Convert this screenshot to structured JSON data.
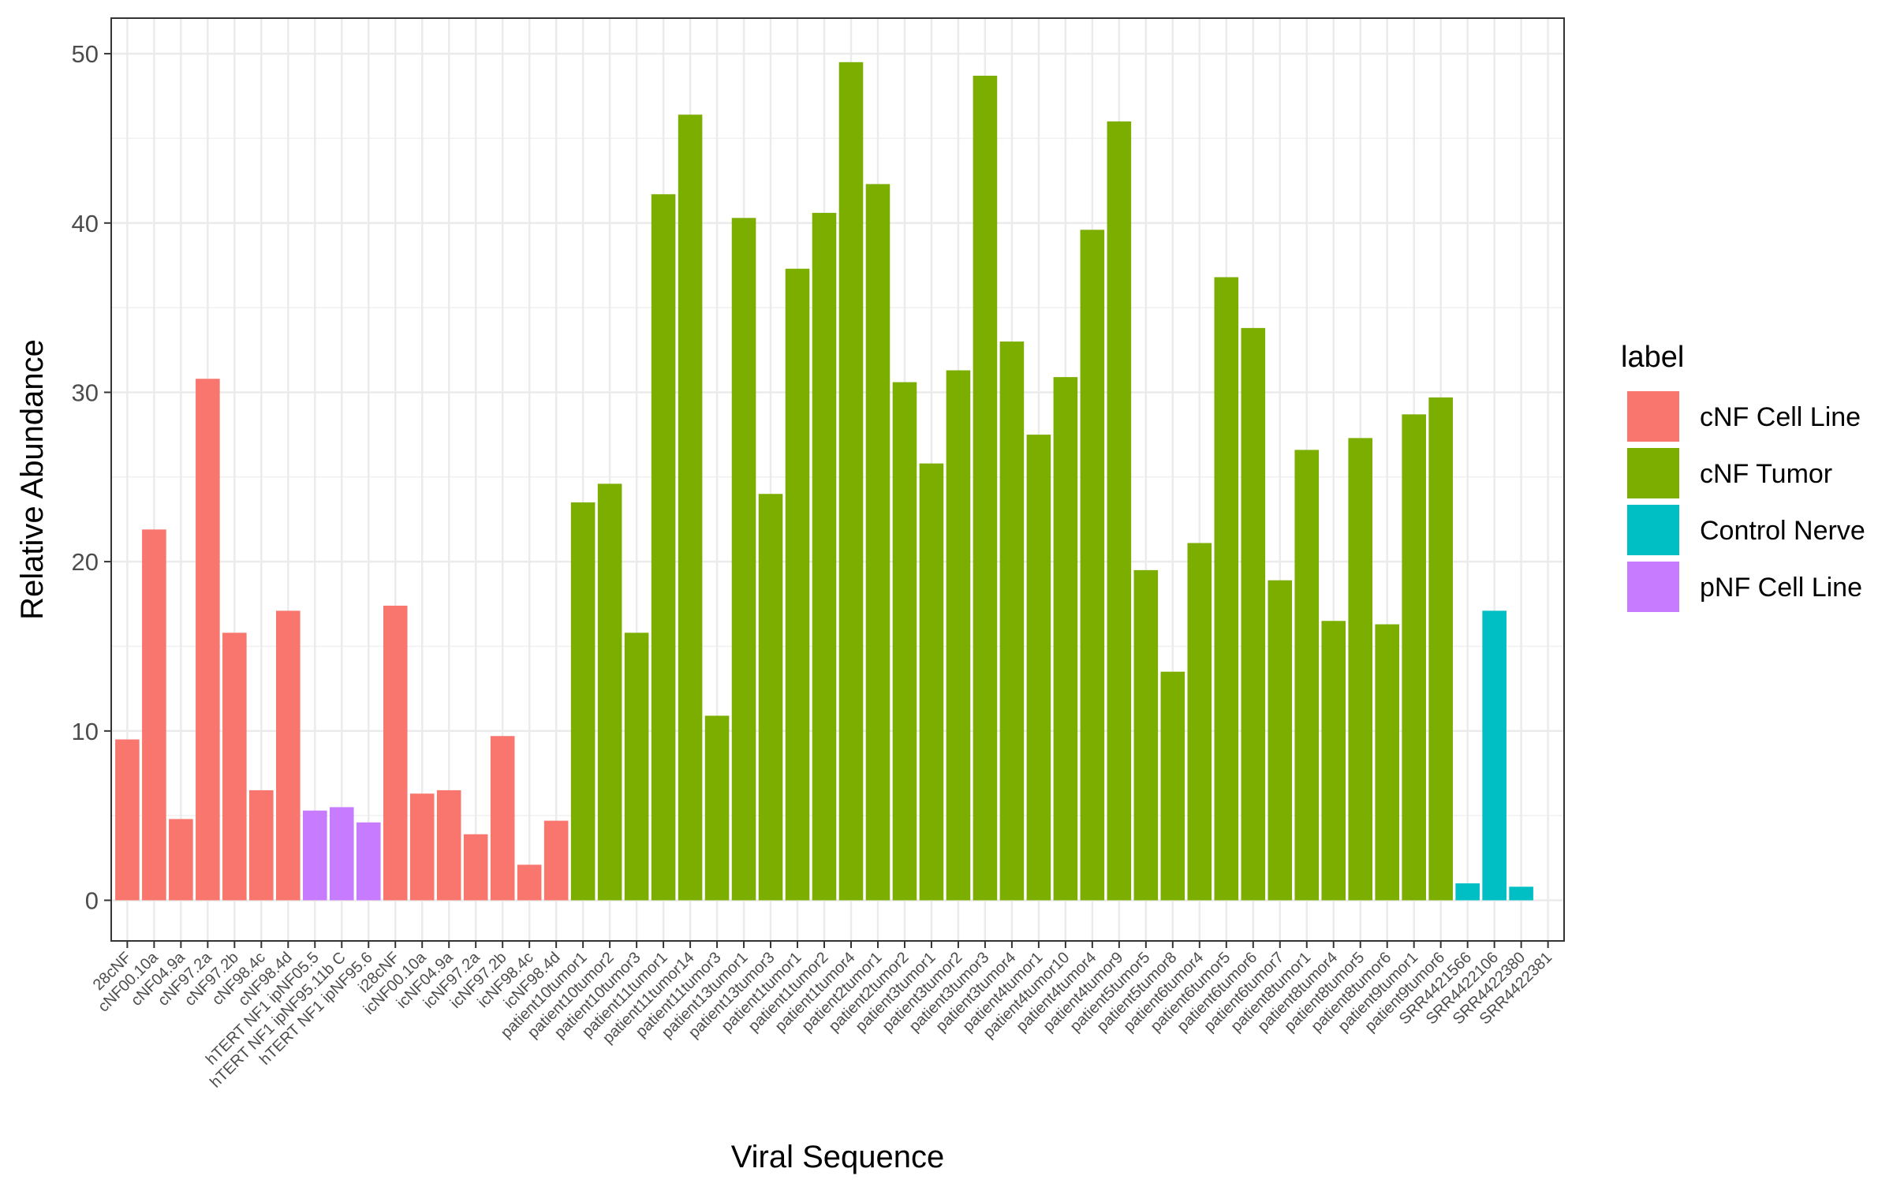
{
  "chart_data": {
    "type": "bar",
    "xlabel": "Viral Sequence",
    "ylabel": "Relative Abundance",
    "ylim": [
      -2.4,
      52.1
    ],
    "yticks": [
      0,
      10,
      20,
      30,
      40,
      50
    ],
    "grid": true,
    "legend_title": "label",
    "legend_position": "right",
    "groups": [
      {
        "name": "cNF Cell Line",
        "color": "#F8766D"
      },
      {
        "name": "cNF Tumor",
        "color": "#7CAE00"
      },
      {
        "name": "Control Nerve",
        "color": "#00BFC4"
      },
      {
        "name": "pNF Cell Line",
        "color": "#C77CFF"
      }
    ],
    "categories": [
      "28cNF",
      "cNF00.10a",
      "cNF04.9a",
      "cNF97.2a",
      "cNF97.2b",
      "cNF98.4c",
      "cNF98.4d",
      "hTERT NF1 ipNF05.5",
      "hTERT NF1 ipNF95.11b C",
      "hTERT NF1 ipNF95.6",
      "i28cNF",
      "icNF00.10a",
      "icNF04.9a",
      "icNF97.2a",
      "icNF97.2b",
      "icNF98.4c",
      "icNF98.4d",
      "patient10tumor1",
      "patient10tumor2",
      "patient10tumor3",
      "patient11tumor1",
      "patient11tumor14",
      "patient11tumor3",
      "patient13tumor1",
      "patient13tumor3",
      "patient1tumor1",
      "patient1tumor2",
      "patient1tumor4",
      "patient2tumor1",
      "patient2tumor2",
      "patient3tumor1",
      "patient3tumor2",
      "patient3tumor3",
      "patient3tumor4",
      "patient4tumor1",
      "patient4tumor10",
      "patient4tumor4",
      "patient4tumor9",
      "patient5tumor5",
      "patient5tumor8",
      "patient6tumor4",
      "patient6tumor5",
      "patient6tumor6",
      "patient6tumor7",
      "patient8tumor1",
      "patient8tumor4",
      "patient8tumor5",
      "patient8tumor6",
      "patient9tumor1",
      "patient9tumor6",
      "SRR4421566",
      "SRR4422106",
      "SRR4422380",
      "SRR4422381"
    ],
    "values": [
      9.5,
      21.9,
      4.8,
      30.8,
      15.8,
      6.5,
      17.1,
      5.3,
      5.5,
      4.6,
      17.4,
      6.3,
      6.5,
      3.9,
      9.7,
      2.1,
      4.7,
      23.5,
      24.6,
      15.8,
      41.7,
      46.4,
      10.9,
      40.3,
      24.0,
      37.3,
      40.6,
      49.5,
      42.3,
      30.6,
      25.8,
      31.3,
      48.7,
      33.0,
      27.5,
      30.9,
      39.6,
      46.0,
      19.5,
      13.5,
      21.1,
      36.8,
      33.8,
      18.9,
      26.6,
      16.5,
      27.3,
      16.3,
      28.7,
      29.7,
      1.0,
      17.1,
      0.8,
      0.0
    ],
    "bar_group": [
      "cNF Cell Line",
      "cNF Cell Line",
      "cNF Cell Line",
      "cNF Cell Line",
      "cNF Cell Line",
      "cNF Cell Line",
      "cNF Cell Line",
      "pNF Cell Line",
      "pNF Cell Line",
      "pNF Cell Line",
      "cNF Cell Line",
      "cNF Cell Line",
      "cNF Cell Line",
      "cNF Cell Line",
      "cNF Cell Line",
      "cNF Cell Line",
      "cNF Cell Line",
      "cNF Tumor",
      "cNF Tumor",
      "cNF Tumor",
      "cNF Tumor",
      "cNF Tumor",
      "cNF Tumor",
      "cNF Tumor",
      "cNF Tumor",
      "cNF Tumor",
      "cNF Tumor",
      "cNF Tumor",
      "cNF Tumor",
      "cNF Tumor",
      "cNF Tumor",
      "cNF Tumor",
      "cNF Tumor",
      "cNF Tumor",
      "cNF Tumor",
      "cNF Tumor",
      "cNF Tumor",
      "cNF Tumor",
      "cNF Tumor",
      "cNF Tumor",
      "cNF Tumor",
      "cNF Tumor",
      "cNF Tumor",
      "cNF Tumor",
      "cNF Tumor",
      "cNF Tumor",
      "cNF Tumor",
      "cNF Tumor",
      "cNF Tumor",
      "cNF Tumor",
      "Control Nerve",
      "Control Nerve",
      "Control Nerve",
      "Control Nerve"
    ]
  }
}
